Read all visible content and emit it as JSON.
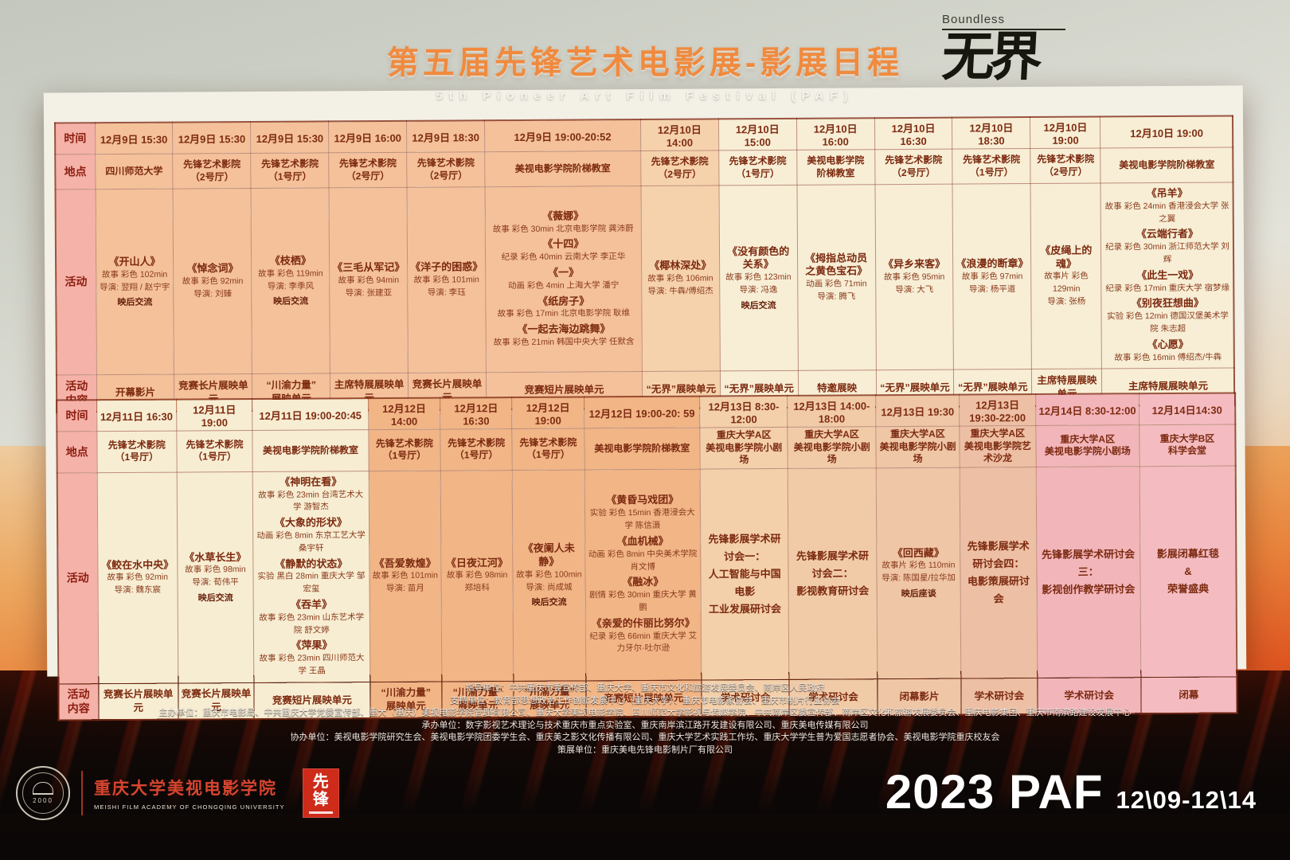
{
  "header": {
    "title": "第五届先锋艺术电影展-影展日程",
    "subtitle": "5th Pioneer Art Film Festival (PAF)",
    "logo_small": "Boundless",
    "logo_large": "无界"
  },
  "row_labels": {
    "time": "时间",
    "venue": "地点",
    "activity": "活动",
    "content": "活动\n内容"
  },
  "palette": {
    "salmon": "#f4c19a",
    "mid": "#f6d2ac",
    "cream": "#f7eed5",
    "cream2": "#f7edd2",
    "salmon2": "#f1b586",
    "tan1": "#f3d0aa",
    "tan2": "#f1cba8",
    "tan3": "#efc6a6",
    "tan4": "#edbfa4",
    "pink1": "#f2b5ba",
    "pink2": "#f4bcc1",
    "label_pink": "#f5b2a8",
    "cell_text": "#7c2a10",
    "title_orange": "#f08a3e",
    "seal_red": "#ce2b1a",
    "footer_white": "#ffffff"
  },
  "tables": [
    {
      "columns": [
        {
          "w": 1,
          "bg": "salmon",
          "time": "12月9日 15:30",
          "venue": "四川师范大学",
          "films": [
            {
              "title": "《开山人》",
              "lines": [
                "故事 彩色 102min",
                "导演: 翌翔 / 赵宁宇"
              ],
              "note": "映后交流"
            }
          ],
          "content": "开幕影片"
        },
        {
          "w": 1,
          "bg": "salmon",
          "time": "12月9日 15:30",
          "venue": "先锋艺术影院\n（2号厅）",
          "films": [
            {
              "title": "《悼念词》",
              "lines": [
                "故事 彩色 92min",
                "导演: 刘臻"
              ]
            }
          ],
          "content": "竞赛长片展映单元"
        },
        {
          "w": 1,
          "bg": "salmon",
          "time": "12月9日 15:30",
          "venue": "先锋艺术影院\n（1号厅）",
          "films": [
            {
              "title": "《枝栖》",
              "lines": [
                "故事 彩色 119min",
                "导演: 李季风"
              ],
              "note": "映后交流"
            }
          ],
          "content": "“川渝力量”\n展映单元"
        },
        {
          "w": 1,
          "bg": "salmon",
          "time": "12月9日 16:00",
          "venue": "先锋艺术影院\n（2号厅）",
          "films": [
            {
              "title": "《三毛从军记》",
              "lines": [
                "故事 彩色 94min",
                "导演: 张建亚"
              ]
            }
          ],
          "content": "主席特展展映单元"
        },
        {
          "w": 1,
          "bg": "salmon",
          "time": "12月9日 18:30",
          "venue": "先锋艺术影院\n（2号厅）",
          "films": [
            {
              "title": "《洋子的困惑》",
              "lines": [
                "故事 彩色 101min",
                "导演: 李珏"
              ]
            }
          ],
          "content": "竞赛长片展映单元"
        },
        {
          "w": 2,
          "bg": "salmon",
          "time": "12月9日 19:00-20:52",
          "venue": "美视电影学院阶梯教室",
          "films": [
            {
              "title": "《薇娜》",
              "lines": [
                "故事 彩色 30min 北京电影学院 龚沛蔚"
              ]
            },
            {
              "title": "《十四》",
              "lines": [
                "纪录 彩色 40min 云南大学 李正华"
              ]
            },
            {
              "title": "《一》",
              "lines": [
                "动画 彩色 4min 上海大学 潘宁"
              ]
            },
            {
              "title": "《纸房子》",
              "lines": [
                "故事 彩色 17min 北京电影学院 耿维"
              ]
            },
            {
              "title": "《一起去海边跳舞》",
              "lines": [
                "故事 彩色 21min 韩国中央大学 任默含"
              ]
            }
          ],
          "content": "竞赛短片展映单元"
        },
        {
          "w": 1,
          "bg": "mid",
          "time": "12月10日 14:00",
          "venue": "先锋艺术影院\n（2号厅）",
          "films": [
            {
              "title": "《椰林深处》",
              "lines": [
                "故事 彩色 106min",
                "导演: 牛犇/傅绍杰"
              ]
            }
          ],
          "content": "“无界”展映单元"
        },
        {
          "w": 1,
          "bg": "cream",
          "time": "12月10日 15:00",
          "venue": "先锋艺术影院\n（1号厅）",
          "films": [
            {
              "title": "《没有颜色的关系》",
              "lines": [
                "故事 彩色 123min",
                "导演: 冯逸"
              ],
              "note": "映后交流"
            }
          ],
          "content": "“无界”展映单元"
        },
        {
          "w": 1,
          "bg": "cream",
          "time": "12月10日 16:00",
          "venue": "美视电影学院\n阶梯教室",
          "films": [
            {
              "title": "《拇指总动员\n之黄色宝石》",
              "lines": [
                "动画 彩色 71min",
                "导演: 腾飞"
              ]
            }
          ],
          "content": "特邀展映"
        },
        {
          "w": 1,
          "bg": "cream",
          "time": "12月10日 16:30",
          "venue": "先锋艺术影院\n（2号厅）",
          "films": [
            {
              "title": "《异乡来客》",
              "lines": [
                "故事 彩色 95min",
                "导演: 大飞"
              ]
            }
          ],
          "content": "“无界”展映单元"
        },
        {
          "w": 1,
          "bg": "cream",
          "time": "12月10日 18:30",
          "venue": "先锋艺术影院\n（1号厅）",
          "films": [
            {
              "title": "《浪漫的断章》",
              "lines": [
                "故事 彩色 97min",
                "导演: 杨平道"
              ]
            }
          ],
          "content": "“无界”展映单元"
        },
        {
          "w": 0.9,
          "bg": "cream",
          "time": "12月10日 19:00",
          "venue": "先锋艺术影院\n（2号厅）",
          "films": [
            {
              "title": "《皮绳上的魂》",
              "lines": [
                "故事片 彩色 129min",
                "导演: 张杨"
              ]
            }
          ],
          "content": "主席特展展映单元"
        },
        {
          "w": 1.7,
          "bg": "cream",
          "time": "12月10日 19:00",
          "venue": "美视电影学院阶梯教室",
          "films": [
            {
              "title": "《吊羊》",
              "lines": [
                "故事 彩色 24min 香港浸会大学 张之翼"
              ]
            },
            {
              "title": "《云端行者》",
              "lines": [
                "纪录 彩色 30min 浙江师范大学 刘辉"
              ]
            },
            {
              "title": "《此生一戏》",
              "lines": [
                "纪录 彩色 17min 重庆大学 宿梦缘"
              ]
            },
            {
              "title": "《别夜狂想曲》",
              "lines": [
                "实验 彩色 12min 德国汉堡美术学院 朱志超"
              ]
            },
            {
              "title": "《心愿》",
              "lines": [
                "故事 彩色 16min 傅绍杰/牛犇"
              ]
            }
          ],
          "content": "主席特展展映单元"
        }
      ]
    },
    {
      "columns": [
        {
          "w": 1,
          "bg": "cream2",
          "time": "12月11日 16:30",
          "venue": "先锋艺术影院\n（1号厅）",
          "films": [
            {
              "title": "《鲛在水中央》",
              "lines": [
                "故事 彩色 92min",
                "导演: 魏东宸"
              ]
            }
          ],
          "content": "竞赛长片展映单元"
        },
        {
          "w": 0.95,
          "bg": "cream2",
          "time": "12月11日 19:00",
          "venue": "先锋艺术影院\n（1号厅）",
          "films": [
            {
              "title": "《水草长生》",
              "lines": [
                "故事 彩色 98min",
                "导演: 荀伟平"
              ],
              "note": "映后交流"
            }
          ],
          "content": "竞赛长片展映单元"
        },
        {
          "w": 1.45,
          "bg": "cream2",
          "time": "12月11日 19:00-20:45",
          "venue": "美视电影学院阶梯教室",
          "films": [
            {
              "title": "《神明在看》",
              "lines": [
                "故事 彩色 23min 台湾艺术大学 游智杰"
              ]
            },
            {
              "title": "《大象的形状》",
              "lines": [
                "动画 彩色 8min 东京工艺大学 桑宇轩"
              ]
            },
            {
              "title": "《静默的状态》",
              "lines": [
                "实验 黑白  28min 重庆大学 邹宏玺"
              ]
            },
            {
              "title": "《吞羊》",
              "lines": [
                "故事 彩色 23min 山东艺术学院 舒文婷"
              ]
            },
            {
              "title": "《萍果》",
              "lines": [
                "故事 彩色 23min 四川师范大学 王晶"
              ]
            }
          ],
          "content": "竞赛短片展映单元"
        },
        {
          "w": 0.9,
          "bg": "salmon2",
          "time": "12月12日 14:00",
          "venue": "先锋艺术影院\n（1号厅）",
          "films": [
            {
              "title": "《吾爱敦煌》",
              "lines": [
                "故事 彩色 101min",
                "导演: 苗月"
              ]
            }
          ],
          "content": "“川渝力量”\n展映单元"
        },
        {
          "w": 0.9,
          "bg": "salmon2",
          "time": "12月12日 16:30",
          "venue": "先锋艺术影院\n（1号厅）",
          "films": [
            {
              "title": "《日夜江河》",
              "lines": [
                "故事 彩色 98min 郑培科"
              ]
            }
          ],
          "content": "“川渝力量”\n展映单元"
        },
        {
          "w": 0.9,
          "bg": "salmon2",
          "time": "12月12日 19:00",
          "venue": "先锋艺术影院\n（1号厅）",
          "films": [
            {
              "title": "《夜阑人未静》",
              "lines": [
                "故事 彩色 100min",
                "导演: 尚成城"
              ],
              "note": "映后交流"
            }
          ],
          "content": "“川渝力量”\n展映单元"
        },
        {
          "w": 1.45,
          "bg": "salmon2",
          "time": "12月12日 19:00-20: 59",
          "venue": "美视电影学院阶梯教室",
          "films": [
            {
              "title": "《黄昏马戏团》",
              "lines": [
                "实验 彩色 15min 香港浸会大学 陈信滠"
              ]
            },
            {
              "title": "《血机械》",
              "lines": [
                "动画 彩色 8min 中央美术学院 肖文博"
              ]
            },
            {
              "title": "《融冰》",
              "lines": [
                "剧情 彩色 30min 重庆大学 黄鹏"
              ]
            },
            {
              "title": "《亲爱的佧丽比努尔》",
              "lines": [
                "纪录 彩色 66min 重庆大学 艾力牙尔·吐尔逊"
              ]
            }
          ],
          "content": "竞赛短片展映单元"
        },
        {
          "w": 1.1,
          "bg": "tan1",
          "time": "12月13日  8:30-12:00",
          "venue": "重庆大学A区\n美视电影学院小剧场",
          "seminar": "先锋影展学术研讨会一：\n人工智能与中国电影\n工业发展研讨会",
          "content": "学术研讨会"
        },
        {
          "w": 1.1,
          "bg": "tan2",
          "time": "12月13日 14:00-18:00",
          "venue": "重庆大学A区\n美视电影学院小剧场",
          "seminar": "先锋影展学术研讨会二：\n影视教育研讨会",
          "content": "学术研讨会"
        },
        {
          "w": 1.05,
          "bg": "tan3",
          "time": "12月13日 19:30",
          "venue": "重庆大学A区\n美视电影学院小剧场",
          "films": [
            {
              "title": "《回西藏》",
              "lines": [
                "故事片 彩色 110min",
                "导演: 陈国星/拉华加"
              ],
              "note": "映后座谈"
            }
          ],
          "content": "闭幕影片"
        },
        {
          "w": 0.95,
          "bg": "tan4",
          "time": "12月13日19:30-22:00",
          "venue": "重庆大学A区\n美视电影学院艺术沙龙",
          "seminar": "先锋影展学术研讨会四：\n电影策展研讨会",
          "content": "学术研讨会"
        },
        {
          "w": 1.3,
          "bg": "pink1",
          "time": "12月14日 8:30-12:00",
          "venue": "重庆大学A区\n美视电影学院小剧场",
          "seminar": "先锋影展学术研讨会三：\n影视创作教学研讨会",
          "content": "学术研讨会"
        },
        {
          "w": 1.2,
          "bg": "pink2",
          "time": "12月14日14:30",
          "venue": "重庆大学B区\n科学会堂",
          "seminar": "影展闭幕红毯\n&\n荣誉盛典",
          "content": "闭幕"
        }
      ]
    }
  ],
  "credits": [
    "指导单位：中共重庆市委宣传部、重庆大学、重庆市文化和旅游发展委员会、南岸区人民政府",
    "支持单位：教育部思想政治工作创新发展中心（重庆大学）、重庆市电影家协会、重庆市制片行业协会",
    "主办单位：重庆市电影局、中共重庆大学党委宣传部、重大（重庆）美视电影学院管理有限公司、重庆大学美视电影学院、四川师范大学影视与传媒学院、中共南岸区委宣传部、南岸区文化和旅游发展委员会、重庆电影集团、重庆市南滨路建设发展中心",
    "承办单位：数字影视艺术理论与技术重庆市重点实验室、重庆南岸滨江路开发建设有限公司、重庆美电传媒有限公司",
    "协办单位：美视电影学院研究生会、美视电影学院团委学生会、重庆美之影文化传播有限公司、重庆大学艺术实践工作坊、重庆大学学生普为爱国志愿者协会、美视电影学院重庆校友会",
    "策展单位：重庆美电先锋电影制片厂有限公司"
  ],
  "footer": {
    "year_label": "2023 PAF",
    "date_range": "12\\09-12\\14",
    "academy_cn": "重庆大学美视电影学院",
    "academy_en": "MEISHI FILM ACADEMY OF CHONGQING UNIVERSITY",
    "emblem_year": "2000",
    "seal_text": "先锋"
  }
}
